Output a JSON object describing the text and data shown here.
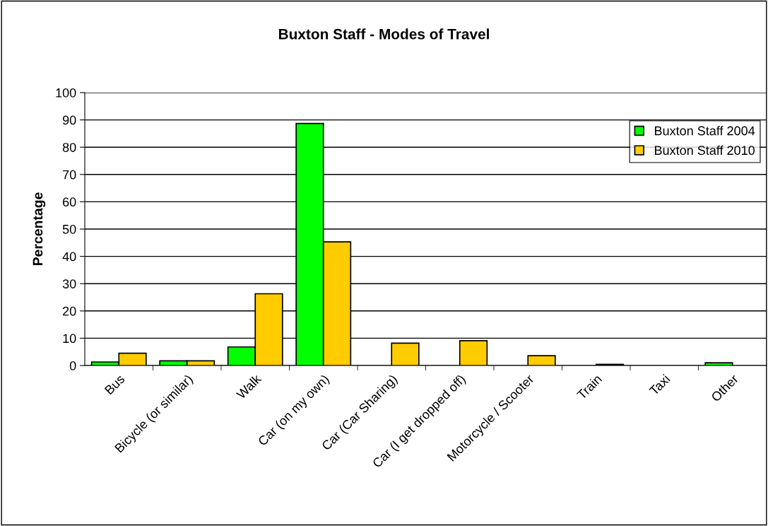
{
  "chart_data": {
    "type": "bar",
    "title": "Buxton Staff - Modes of Travel",
    "ylabel": "Percentage",
    "categories": [
      "Bus",
      "Bicycle (or similar)",
      "Walk",
      "Car (on my own)",
      "Car (Car Sharing)",
      "Car (I get dropped off)",
      "Motorcycle / Scooter",
      "Train",
      "Taxi",
      "Other"
    ],
    "series": [
      {
        "name": "Buxton Staff 2004",
        "color": "#00ff00",
        "values": [
          1.3,
          1.7,
          6.8,
          88.7,
          null,
          null,
          null,
          null,
          null,
          1.0
        ]
      },
      {
        "name": "Buxton Staff 2010",
        "color": "#ffcc00",
        "values": [
          4.5,
          1.7,
          26.3,
          45.3,
          8.2,
          9.1,
          3.6,
          0.4,
          null,
          null
        ]
      }
    ],
    "ylim": [
      0,
      100
    ],
    "yticks": [
      0,
      10,
      20,
      30,
      40,
      50,
      60,
      70,
      80,
      90,
      100
    ],
    "grid": "y",
    "legend": "top right"
  }
}
